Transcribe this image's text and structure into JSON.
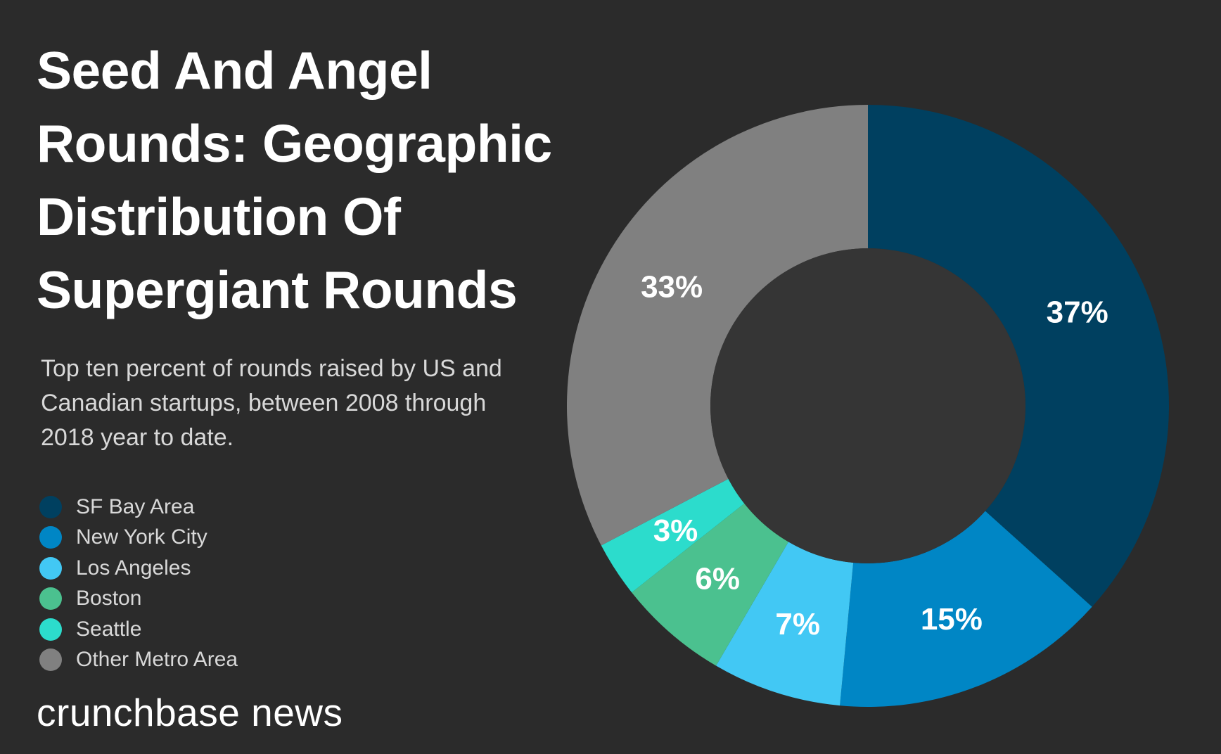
{
  "colors": {
    "background": "#2b2b2b",
    "hole": "#353535",
    "title": "#ffffff",
    "text": "#d8d8d8"
  },
  "header": {
    "title": "Seed And Angel Rounds: Geographic Distribution Of Supergiant Rounds",
    "subtitle": "Top ten percent of rounds raised by US and Canadian startups, between 2008 through 2018 year to date."
  },
  "brand": {
    "text": "crunchbase news"
  },
  "chart_data": {
    "type": "pie",
    "donut": true,
    "title": "Seed And Angel Rounds: Geographic Distribution Of Supergiant Rounds",
    "subtitle": "Top ten percent of rounds raised by US and Canadian startups, between 2008 through 2018 year to date.",
    "legend_position": "left",
    "categories": [
      "SF Bay Area",
      "New York City",
      "Los Angeles",
      "Boston",
      "Seattle",
      "Other Metro Area"
    ],
    "values": [
      37,
      15,
      7,
      6,
      3,
      33
    ],
    "labels": [
      "37%",
      "15%",
      "7%",
      "6%",
      "3%",
      "33%"
    ],
    "colors": [
      "#004060",
      "#0086c5",
      "#42c8f4",
      "#4bc18f",
      "#2cdccc",
      "#808080"
    ],
    "unit": "%"
  }
}
